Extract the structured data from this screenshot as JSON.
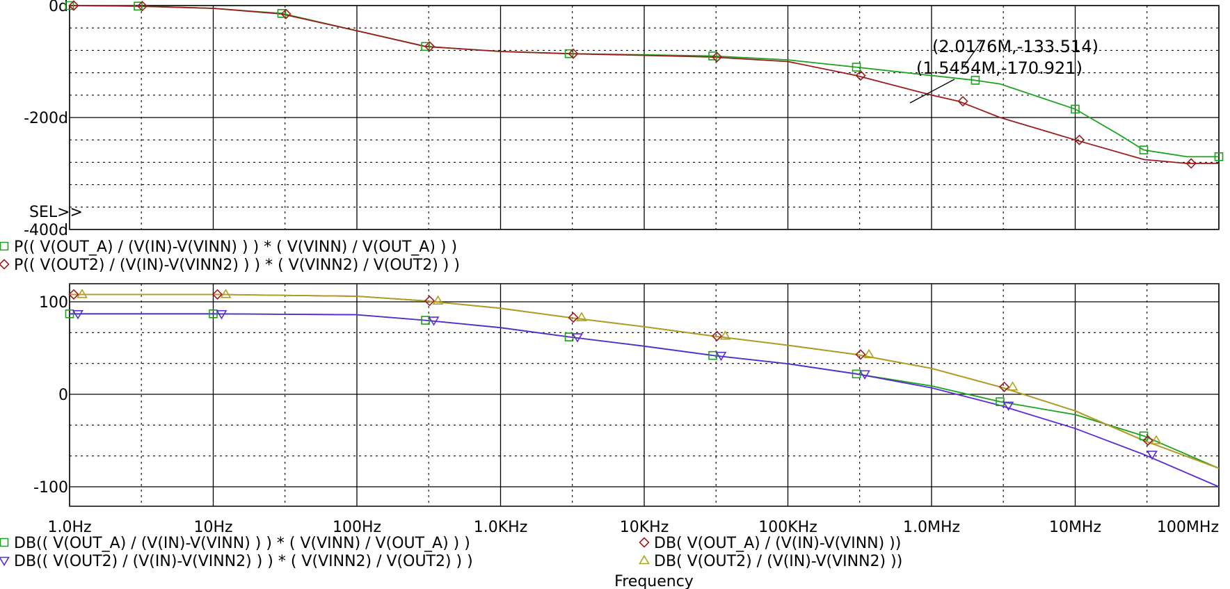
{
  "chart_data": [
    {
      "type": "line",
      "xscale": "log",
      "xlim": [
        1,
        100000000
      ],
      "ylim": [
        -400,
        0
      ],
      "yticks": [
        "0d",
        "-200d",
        "-400d"
      ],
      "grid": true,
      "sel_marker": "SEL>>",
      "series": [
        {
          "name": "P(( V(OUT_A) / (V(IN)-V(VINN) ) ) * ( V(VINN) / V(OUT_A) ) )",
          "color": "#1aa31a",
          "marker": "square",
          "x": [
            1,
            3,
            10,
            30,
            100,
            300,
            1000,
            3000,
            10000,
            30000,
            100000,
            300000,
            1000000,
            2017600,
            3000000,
            10000000,
            20000000,
            30000000,
            60000000,
            100000000
          ],
          "y": [
            0,
            -1,
            -5,
            -14,
            -45,
            -73,
            -82,
            -86,
            -88,
            -90,
            -97,
            -110,
            -125,
            -133.514,
            -140,
            -185,
            -230,
            -258,
            -270,
            -270
          ]
        },
        {
          "name": "P(( V(OUT2) / (V(IN)-V(VINN2) ) ) * ( V(VINN2) / V(OUT2) ) )",
          "color": "#9b1c1c",
          "marker": "diamond",
          "x": [
            1,
            3,
            10,
            30,
            100,
            300,
            1000,
            3000,
            10000,
            30000,
            100000,
            300000,
            1000000,
            1545400,
            3000000,
            10000000,
            30000000,
            60000000,
            100000000
          ],
          "y": [
            0,
            -1,
            -5,
            -15,
            -45,
            -73,
            -82,
            -86,
            -89,
            -92,
            -100,
            -125,
            -160,
            -170.921,
            -200,
            -240,
            -275,
            -282,
            -282
          ]
        }
      ],
      "annotations": [
        "(2.0176M,-133.514)",
        "(1.5454M,-170.921)"
      ]
    },
    {
      "type": "line",
      "xscale": "log",
      "xlim": [
        1,
        100000000
      ],
      "ylim": [
        -120,
        120
      ],
      "xticks": [
        "1.0Hz",
        "10Hz",
        "100Hz",
        "1.0KHz",
        "10KHz",
        "100KHz",
        "1.0MHz",
        "10MHz",
        "100MHz"
      ],
      "yticks": [
        "100",
        "0",
        "-100"
      ],
      "xlabel": "Frequency",
      "grid": true,
      "series": [
        {
          "name": "DB(( V(OUT_A) / (V(IN)-V(VINN) ) ) * ( V(VINN) / V(OUT_A) ) )",
          "color": "#1aa31a",
          "marker": "square",
          "x": [
            1,
            10,
            100,
            300,
            1000,
            3000,
            10000,
            30000,
            100000,
            300000,
            1000000,
            3000000,
            10000000,
            30000000,
            100000000
          ],
          "y": [
            87,
            87,
            86,
            80,
            72,
            62,
            52,
            42,
            33,
            22,
            9,
            -8,
            -22,
            -45,
            -80
          ]
        },
        {
          "name": "DB( V(OUT_A) / (V(IN)-V(VINN) ))",
          "color": "#9b1c1c",
          "marker": "diamond",
          "x": [
            1,
            10,
            100,
            300,
            1000,
            3000,
            10000,
            30000,
            100000,
            300000,
            1000000,
            3000000,
            10000000,
            30000000,
            100000000
          ],
          "y": [
            108,
            108,
            106,
            101,
            93,
            83,
            73,
            63,
            53,
            43,
            28,
            8,
            -18,
            -50,
            -80
          ]
        },
        {
          "name": "DB(( V(OUT2) / (V(IN)-V(VINN2) ) ) * ( V(VINN2) / V(OUT2) ) )",
          "color": "#5b2ad6",
          "marker": "triangle-down",
          "x": [
            1,
            10,
            100,
            300,
            1000,
            3000,
            10000,
            30000,
            100000,
            300000,
            1000000,
            3000000,
            10000000,
            30000000,
            100000000
          ],
          "y": [
            87,
            87,
            86,
            80,
            72,
            62,
            52,
            42,
            33,
            22,
            7,
            -12,
            -37,
            -65,
            -100
          ]
        },
        {
          "name": "DB( V(OUT2) / (V(IN)-V(VINN2) ))",
          "color": "#b0a21e",
          "marker": "triangle-up",
          "x": [
            1,
            10,
            100,
            300,
            1000,
            3000,
            10000,
            30000,
            100000,
            300000,
            1000000,
            3000000,
            10000000,
            30000000,
            100000000
          ],
          "y": [
            108,
            108,
            106,
            101,
            93,
            83,
            73,
            63,
            53,
            43,
            28,
            8,
            -18,
            -50,
            -80
          ]
        }
      ]
    }
  ]
}
